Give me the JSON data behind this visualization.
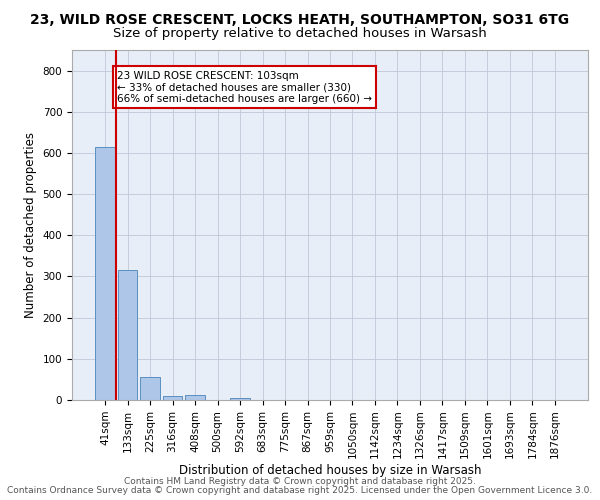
{
  "title_line1": "23, WILD ROSE CRESCENT, LOCKS HEATH, SOUTHAMPTON, SO31 6TG",
  "title_line2": "Size of property relative to detached houses in Warsash",
  "xlabel": "Distribution of detached houses by size in Warsash",
  "ylabel": "Number of detached properties",
  "bar_color": "#aec6e8",
  "bar_edge_color": "#5a8fc0",
  "vline_color": "#cc0000",
  "annotation_text": "23 WILD ROSE CRESCENT: 103sqm\n← 33% of detached houses are smaller (330)\n66% of semi-detached houses are larger (660) →",
  "annotation_box_color": "#ffffff",
  "annotation_edge_color": "#cc0000",
  "bin_labels": [
    "41sqm",
    "133sqm",
    "225sqm",
    "316sqm",
    "408sqm",
    "500sqm",
    "592sqm",
    "683sqm",
    "775sqm",
    "867sqm",
    "959sqm",
    "1050sqm",
    "1142sqm",
    "1234sqm",
    "1326sqm",
    "1417sqm",
    "1509sqm",
    "1601sqm",
    "1693sqm",
    "1784sqm",
    "1876sqm"
  ],
  "values": [
    614,
    316,
    55,
    9,
    11,
    0,
    5,
    0,
    0,
    0,
    0,
    0,
    0,
    0,
    0,
    0,
    0,
    0,
    0,
    0,
    0
  ],
  "ylim": [
    0,
    850
  ],
  "yticks": [
    0,
    100,
    200,
    300,
    400,
    500,
    600,
    700,
    800
  ],
  "background_color": "#e8eef8",
  "footer_line1": "Contains HM Land Registry data © Crown copyright and database right 2025.",
  "footer_line2": "Contains Ordnance Survey data © Crown copyright and database right 2025.",
  "footer_line3": "Licensed under the Open Government Licence 3.0.",
  "title_fontsize": 10,
  "axis_label_fontsize": 8.5,
  "tick_fontsize": 7.5,
  "footer_fontsize": 6.5
}
